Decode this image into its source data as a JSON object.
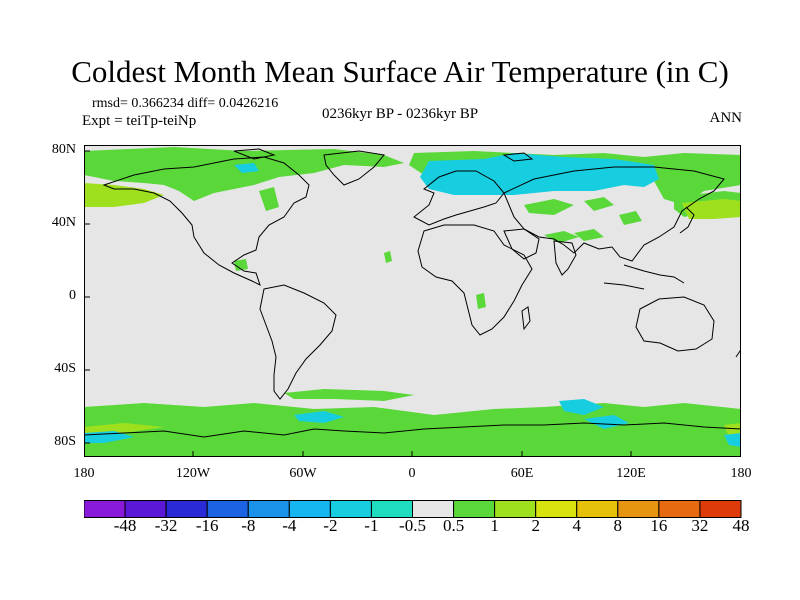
{
  "title": "Coldest Month Mean Surface Air Temperature (in C)",
  "stats": "rmsd= 0.366234  diff= 0.0426216",
  "expt": "Expt = teiTp-teiNp",
  "period": "0236kyr BP - 0236kyr BP",
  "season": "ANN",
  "lat_labels": [
    "80N",
    "40N",
    "0",
    "40S",
    "80S"
  ],
  "lon_labels": [
    "180",
    "120W",
    "60W",
    "0",
    "60E",
    "120E",
    "180"
  ],
  "colorbar": {
    "labels": [
      "-48",
      "-32",
      "-16",
      "-8",
      "-4",
      "-2",
      "-1",
      "-0.5",
      "0.5",
      "1",
      "2",
      "4",
      "8",
      "16",
      "32",
      "48"
    ],
    "colors": [
      "#8a1ad9",
      "#5b18d6",
      "#2a2bd6",
      "#1c63e3",
      "#1a92ea",
      "#16b6f0",
      "#17cde0",
      "#1fdcbf",
      "#e6e6e6",
      "#5ad83a",
      "#9fe01e",
      "#d7e20f",
      "#e6c10a",
      "#e69511",
      "#e66a10",
      "#dd3b0a"
    ]
  },
  "colors": {
    "background": "#e6e6e6",
    "positive": "#5ad83a",
    "negative": "#17cde0",
    "coast": "#000000"
  }
}
